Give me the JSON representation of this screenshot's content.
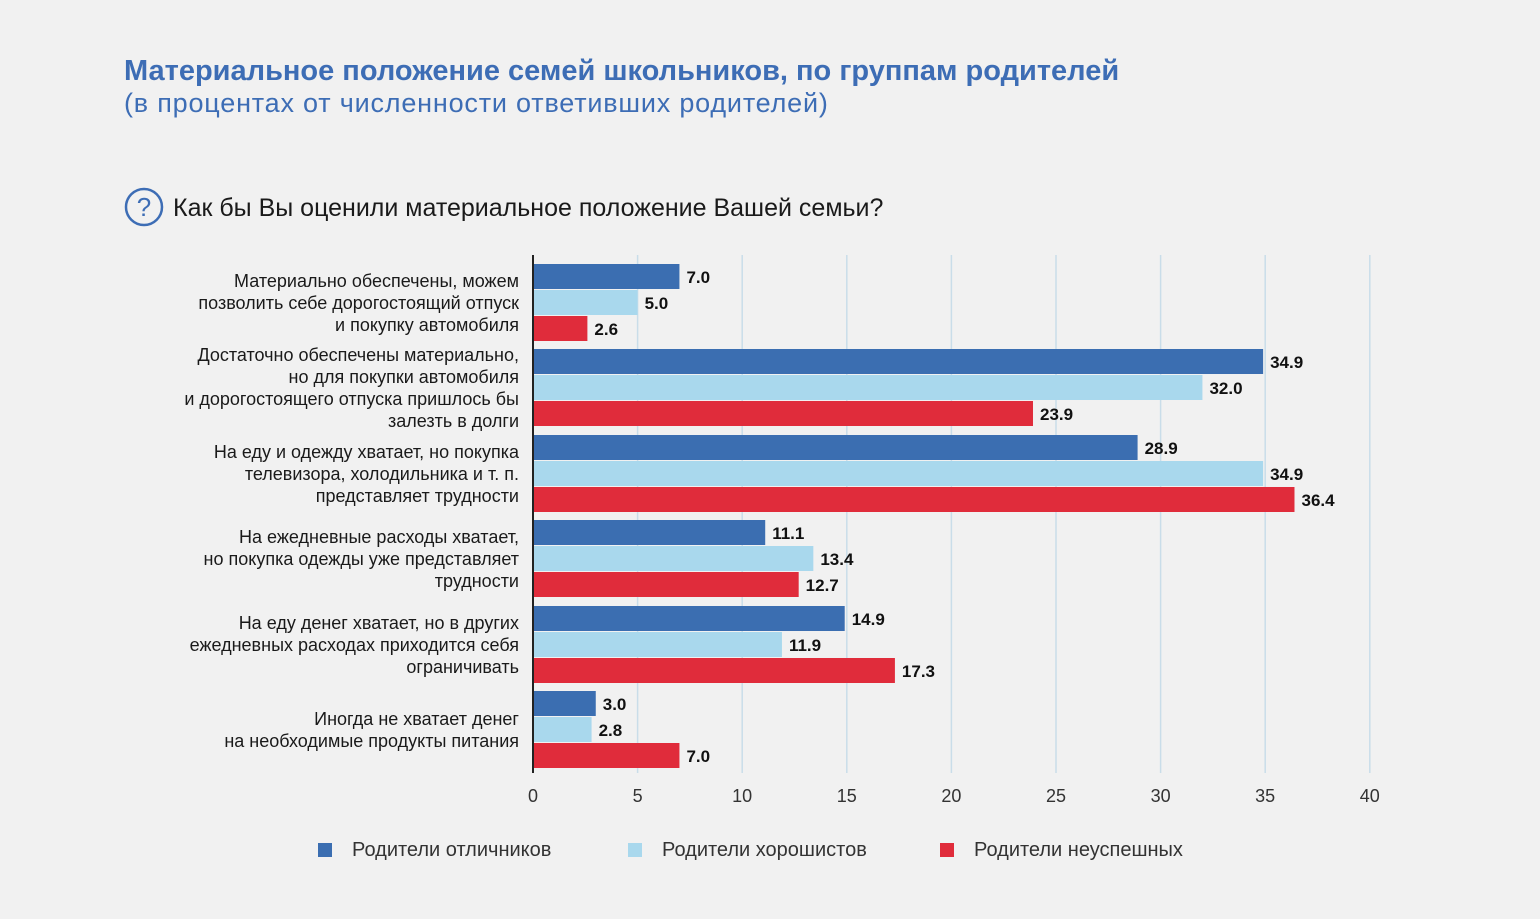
{
  "title": "Материальное положение семей школьников, по группам родителей",
  "subtitle": "(в процентах от численности ответивших родителей)",
  "question": {
    "icon": "question-circle-icon",
    "text": "Как бы Вы оценили материальное положение Вашей семьи?"
  },
  "colors": {
    "accent": "#3d6db5",
    "series": [
      "#3b6eb1",
      "#a9d8ed",
      "#e02c3b"
    ]
  },
  "chart_data": {
    "type": "bar",
    "orientation": "horizontal",
    "categories": [
      [
        "Материально обеспечены, можем",
        "позволить себе дорогостоящий отпуск",
        "и покупку автомобиля"
      ],
      [
        "Достаточно обеспечены материально,",
        "но для покупки автомобиля",
        "и дорогостоящего отпуска пришлось бы",
        "залезть в долги"
      ],
      [
        "На еду и одежду хватает, но покупка",
        "телевизора, холодильника и т. п.",
        "представляет трудности"
      ],
      [
        "На ежедневные расходы хватает,",
        "но покупка одежды уже представляет",
        "трудности"
      ],
      [
        "На еду денег хватает, но в других",
        "ежедневных расходах приходится себя",
        "ограничивать"
      ],
      [
        "Иногда не хватает денег",
        "на необходимые продукты питания"
      ]
    ],
    "series": [
      {
        "name": "Родители отличников",
        "color": "#3b6eb1",
        "values": [
          7.0,
          34.9,
          28.9,
          11.1,
          14.9,
          3.0
        ]
      },
      {
        "name": "Родители хорошистов",
        "color": "#a9d8ed",
        "values": [
          5.0,
          32.0,
          34.9,
          13.4,
          11.9,
          2.8
        ]
      },
      {
        "name": "Родители неуспешных",
        "color": "#e02c3b",
        "values": [
          2.6,
          23.9,
          36.4,
          12.7,
          17.3,
          7.0
        ]
      }
    ],
    "xlim": [
      0,
      40
    ],
    "xticks": [
      0,
      5,
      10,
      15,
      20,
      25,
      30,
      35,
      40
    ],
    "grid": true,
    "legend_position": "bottom"
  }
}
